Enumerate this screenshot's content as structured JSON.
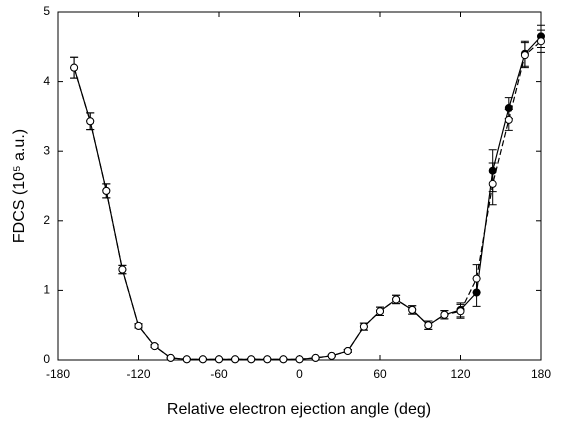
{
  "chart_data": {
    "type": "scatter-line",
    "xlabel": "Relative electron ejection angle (deg)",
    "ylabel": "FDCS (10⁵ a.u.)",
    "x": [
      -168,
      -156,
      -144,
      -132,
      -120,
      -108,
      -96,
      -84,
      -72,
      -60,
      -48,
      -36,
      -24,
      -12,
      0,
      12,
      24,
      36,
      48,
      60,
      72,
      84,
      96,
      108,
      120,
      132,
      144,
      156,
      168,
      180
    ],
    "series": [
      {
        "color": "#000000",
        "marker": "filled",
        "dashed": false,
        "values": [
          4.2,
          3.43,
          2.43,
          1.3,
          0.49,
          0.2,
          0.03,
          0.01,
          0.01,
          0.01,
          0.01,
          0.01,
          0.01,
          0.01,
          0.01,
          0.03,
          0.06,
          0.13,
          0.48,
          0.7,
          0.87,
          0.72,
          0.5,
          0.65,
          0.72,
          0.97,
          2.72,
          3.62,
          4.4,
          4.65
        ],
        "errors": [
          0.15,
          0.12,
          0.1,
          0.06,
          0.03,
          0.02,
          0.01,
          0.01,
          0.01,
          0.01,
          0.01,
          0.01,
          0.01,
          0.01,
          0.01,
          0.01,
          0.01,
          0.02,
          0.05,
          0.06,
          0.06,
          0.06,
          0.06,
          0.06,
          0.1,
          0.2,
          0.3,
          0.15,
          0.18,
          0.16
        ]
      },
      {
        "color": "#000000",
        "marker": "open",
        "dashed": true,
        "values": [
          4.2,
          3.43,
          2.43,
          1.3,
          0.49,
          0.2,
          0.03,
          0.01,
          0.01,
          0.01,
          0.01,
          0.01,
          0.01,
          0.01,
          0.01,
          0.03,
          0.06,
          0.13,
          0.48,
          0.7,
          0.87,
          0.72,
          0.5,
          0.65,
          0.7,
          1.17,
          2.53,
          3.45,
          4.38,
          4.58
        ],
        "errors": [
          0.15,
          0.12,
          0.1,
          0.06,
          0.03,
          0.02,
          0.01,
          0.01,
          0.01,
          0.01,
          0.01,
          0.01,
          0.01,
          0.01,
          0.01,
          0.01,
          0.01,
          0.02,
          0.05,
          0.06,
          0.06,
          0.06,
          0.06,
          0.06,
          0.1,
          0.2,
          0.3,
          0.15,
          0.18,
          0.16
        ]
      }
    ],
    "xlim": [
      -180,
      180
    ],
    "xticks": [
      -180,
      -120,
      -60,
      0,
      60,
      120,
      180
    ],
    "ylim": [
      0,
      5
    ],
    "yticks": [
      0,
      1,
      2,
      3,
      4,
      5
    ]
  }
}
